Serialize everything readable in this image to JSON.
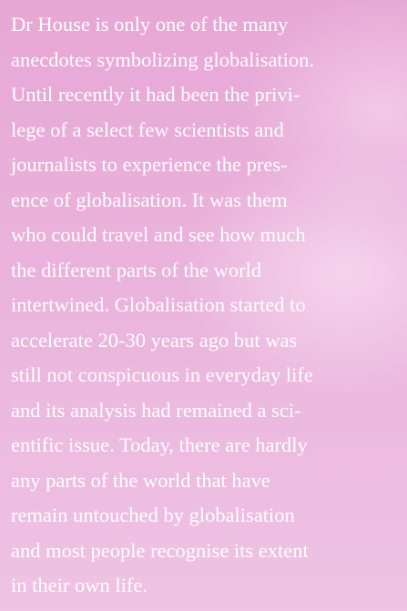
{
  "lines": [
    "Dr House is only one of the many",
    "anecdotes symbolizing globalisation.",
    "Until recently it had been the privi-",
    "lege of a select few scientists and",
    "journalists to experience the pres-",
    "ence of globalisation. It was them",
    "who could travel and see how much",
    "the different parts of the world",
    "intertwined. Globalisation started to",
    "accelerate 20-30 years ago but was",
    "still not conspicuous in everyday life",
    "and its analysis had remained a sci-",
    "entific issue. Today, there are hardly",
    "any parts of the world that have",
    "remain untouched by globalisation",
    "and most people recognise its extent",
    "in their own life."
  ]
}
